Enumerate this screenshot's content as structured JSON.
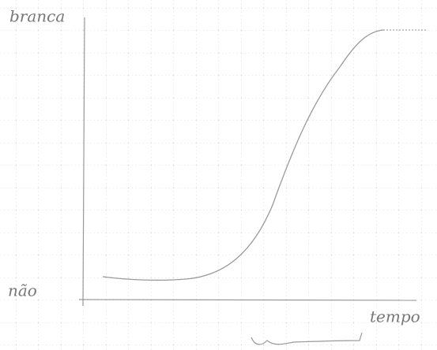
{
  "labels": {
    "y_top": "branca",
    "y_bottom": "não",
    "x_axis": "tempo"
  }
}
